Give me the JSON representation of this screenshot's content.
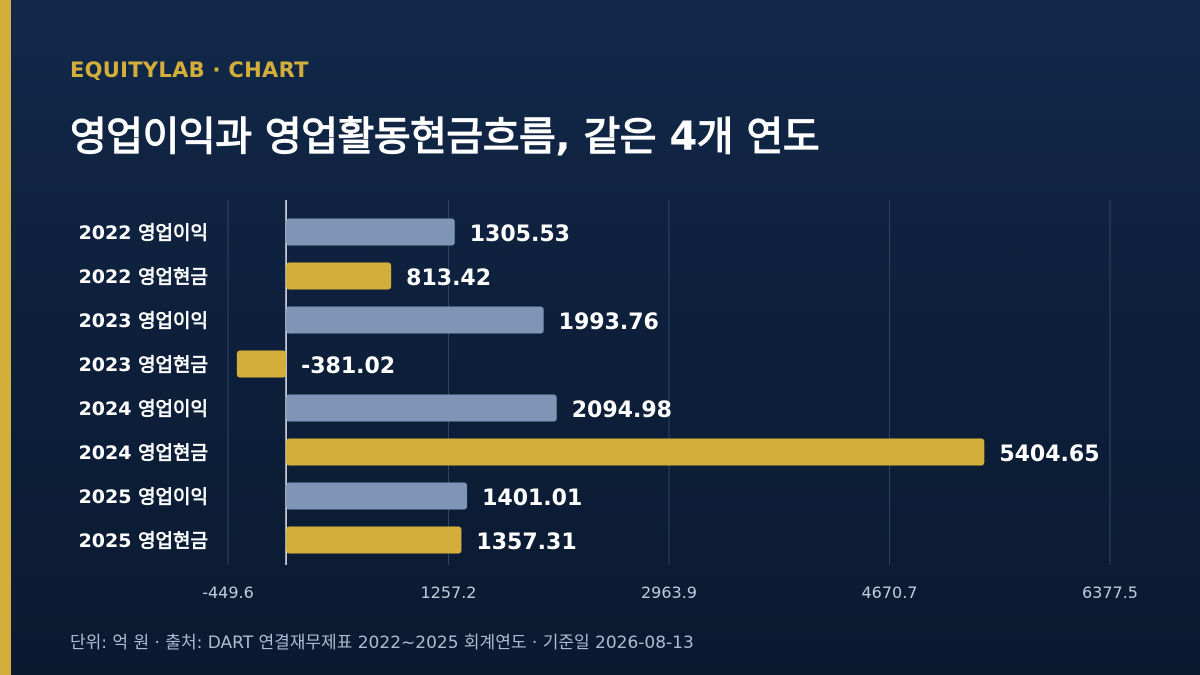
{
  "header": {
    "brand": "EQUITYLAB · CHART",
    "title": "영업이익과 영업활동현금흐름, 같은 4개 연도"
  },
  "footer": {
    "note": "단위: 억 원 · 출처: DART 연결재무제표 2022~2025 회계연도 · 기준일 2026-08-13"
  },
  "colors": {
    "accent": "#d4ae3a",
    "operating_income": "#7f95b5",
    "operating_cash": "#d4ae3a",
    "grid": "#2f4566",
    "zero_line": "#e6ebf2"
  },
  "chart_data": {
    "type": "bar",
    "orientation": "horizontal",
    "categories": [
      "2022 영업이익",
      "2022 영업현금",
      "2023 영업이익",
      "2023 영업현금",
      "2024 영업이익",
      "2024 영업현금",
      "2025 영업이익",
      "2025 영업현금"
    ],
    "values": [
      1305.53,
      813.42,
      1993.76,
      -381.02,
      2094.98,
      5404.65,
      1401.01,
      1357.31
    ],
    "value_labels": [
      "1305.53",
      "813.42",
      "1993.76",
      "-381.02",
      "2094.98",
      "5404.65",
      "1401.01",
      "1357.31"
    ],
    "bar_kinds": [
      "income",
      "cash",
      "income",
      "cash",
      "income",
      "cash",
      "income",
      "cash"
    ],
    "x_ticks": [
      -449.6,
      1257.2,
      2963.9,
      4670.7,
      6377.5
    ],
    "x_tick_labels": [
      "-449.6",
      "1257.2",
      "2963.9",
      "4670.7",
      "6377.5"
    ],
    "xlim": [
      -449.6,
      6377.5
    ],
    "grid": true
  }
}
